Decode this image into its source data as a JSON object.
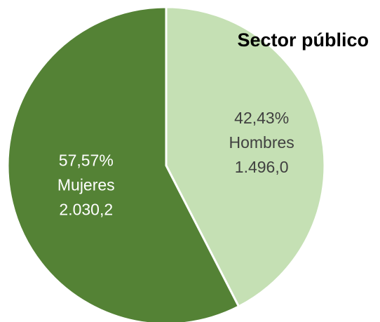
{
  "chart_data": {
    "type": "pie",
    "title": "Sector público",
    "slices": [
      {
        "percent_label": "42,43%",
        "name": "Hombres",
        "value_label": "1.496,0",
        "value": 1496.0,
        "color": "#c5e0b4",
        "label_color": "#404040"
      },
      {
        "percent_label": "57,57%",
        "name": "Mujeres",
        "value_label": "2.030,2",
        "value": 2030.2,
        "color": "#548235",
        "label_color": "#ffffff"
      }
    ],
    "legend": "none"
  }
}
